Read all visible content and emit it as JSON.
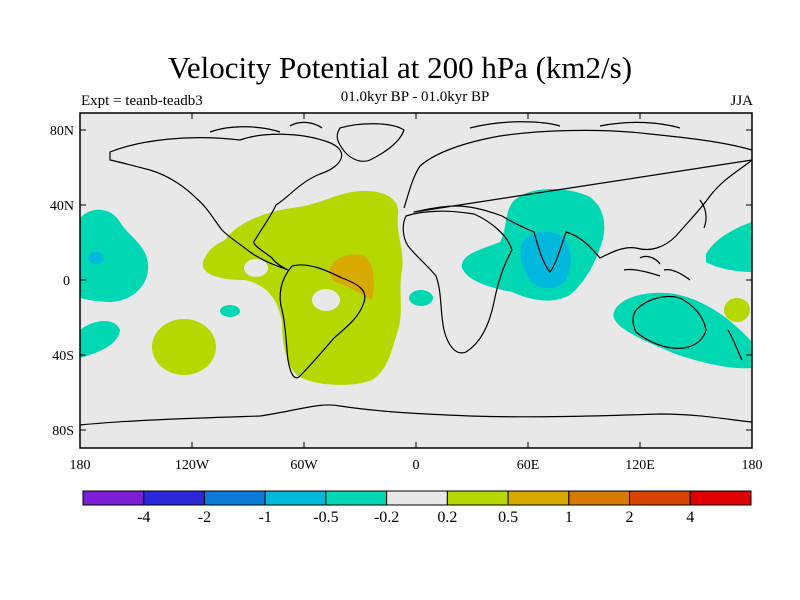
{
  "header": {
    "title": "Velocity Potential at 200 hPa (km2/s)",
    "subtitle": "01.0kyr BP - 01.0kyr BP",
    "experiment": "Expt = teanb-teadb3",
    "season": "JJA"
  },
  "map": {
    "type": "filled-contour-map",
    "variable": "velocity potential",
    "level": "200 hPa",
    "units": "km2/s",
    "lat_ticks": [
      "80N",
      "40N",
      "0",
      "40S",
      "80S"
    ],
    "lon_ticks": [
      "180",
      "120W",
      "60W",
      "0",
      "60E",
      "120E",
      "180"
    ]
  },
  "colorbar": {
    "colors": [
      "#7a1fd6",
      "#2a28d8",
      "#0a7ad6",
      "#00b8dc",
      "#00d8b4",
      "#e8e8e8",
      "#b4d800",
      "#d8aa00",
      "#d87a00",
      "#d84400",
      "#e00000"
    ],
    "labels": [
      "-4",
      "-2",
      "-1",
      "-0.5",
      "-0.2",
      "0.2",
      "0.5",
      "1",
      "2",
      "4"
    ]
  },
  "colors": {
    "background": "#e8e8e8",
    "positive_weak": "#b4d800",
    "positive_moderate": "#d8aa00",
    "negative_weak": "#00d8b4",
    "negative_moderate": "#00b8dc",
    "negative_strong": "#0a7ad6"
  }
}
